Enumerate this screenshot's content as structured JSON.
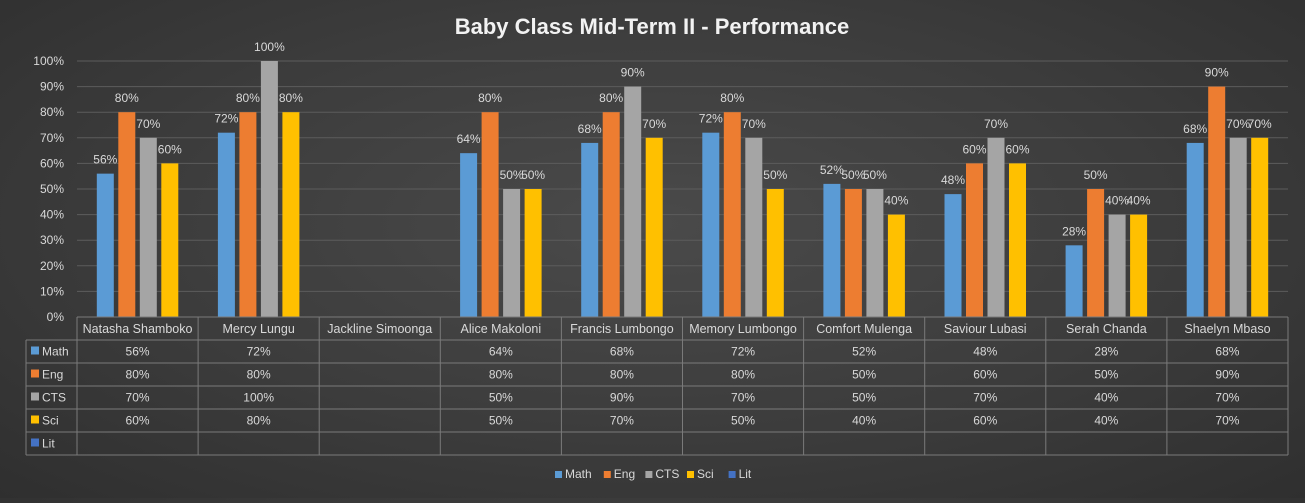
{
  "chart_data": {
    "type": "bar",
    "title": "Baby Class Mid-Term II - Performance",
    "categories": [
      "Natasha Shamboko",
      "Mercy Lungu",
      "Jackline Simoonga",
      "Alice Makoloni",
      "Francis Lumbongo",
      "Memory Lumbongo",
      "Comfort Mulenga",
      "Saviour Lubasi",
      "Serah Chanda",
      "Shaelyn Mbaso"
    ],
    "series": [
      {
        "name": "Math",
        "color": "#5b9bd5",
        "values": [
          56,
          72,
          null,
          64,
          68,
          72,
          52,
          48,
          28,
          68
        ]
      },
      {
        "name": "Eng",
        "color": "#ed7d31",
        "values": [
          80,
          80,
          null,
          80,
          80,
          80,
          50,
          60,
          50,
          90
        ]
      },
      {
        "name": "CTS",
        "color": "#a5a5a5",
        "values": [
          70,
          100,
          null,
          50,
          90,
          70,
          50,
          70,
          40,
          70
        ]
      },
      {
        "name": "Sci",
        "color": "#ffc000",
        "values": [
          60,
          80,
          null,
          50,
          70,
          50,
          40,
          60,
          40,
          70
        ]
      },
      {
        "name": "Lit",
        "color": "#4472c4",
        "values": [
          null,
          null,
          null,
          null,
          null,
          null,
          null,
          null,
          null,
          null
        ]
      }
    ],
    "ylim": [
      0,
      100
    ],
    "yticks": [
      0,
      10,
      20,
      30,
      40,
      50,
      60,
      70,
      80,
      90,
      100
    ],
    "value_suffix": "%",
    "grid": true,
    "legend": "bottom",
    "data_table": true
  }
}
